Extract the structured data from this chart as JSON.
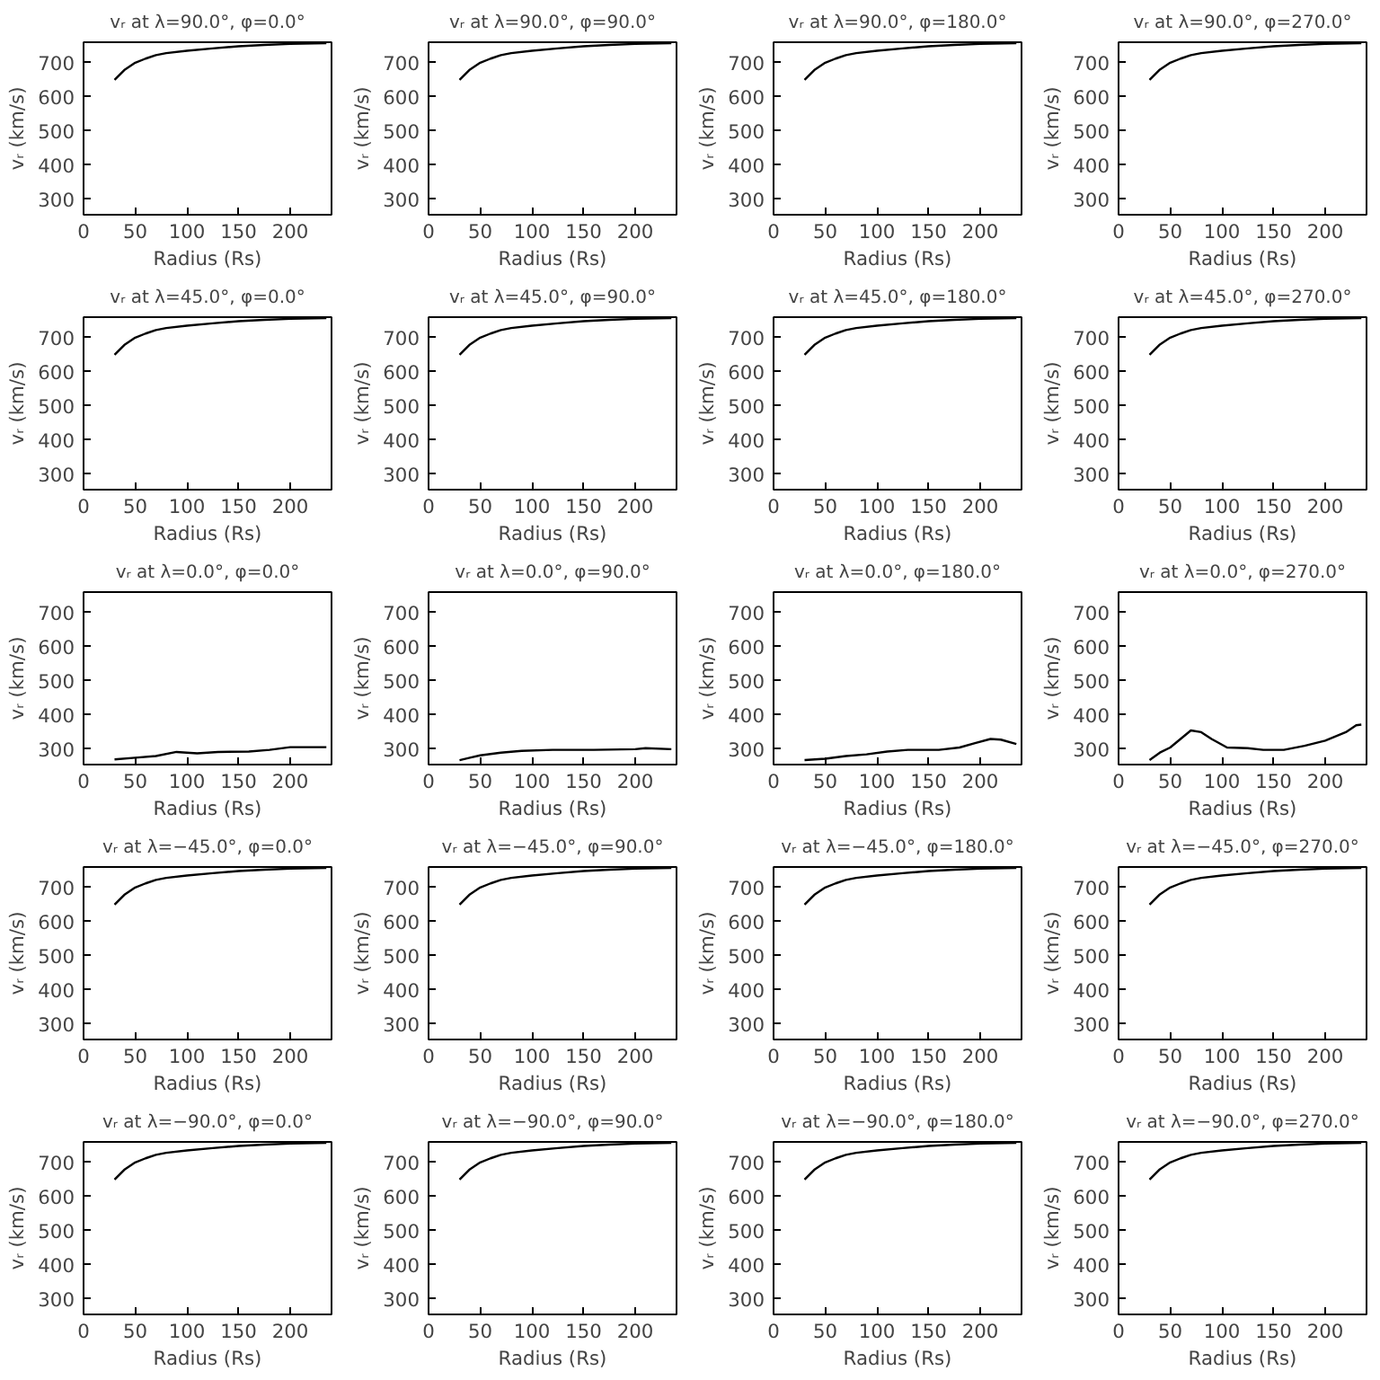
{
  "chart_data": [
    {
      "type": "line",
      "title": "vᵣ at λ=90.0°, φ=0.0°",
      "xlabel": "Radius (Rs)",
      "ylabel": "vᵣ (km/s)",
      "x": [
        30,
        40,
        50,
        60,
        70,
        80,
        100,
        125,
        150,
        175,
        200,
        235
      ],
      "values": [
        650,
        680,
        700,
        712,
        722,
        728,
        735,
        742,
        748,
        752,
        755,
        757
      ],
      "color": "#000000",
      "xlim": [
        0,
        240
      ],
      "ylim": [
        255,
        760
      ],
      "xticks": [
        0,
        50,
        100,
        150,
        200
      ],
      "yticks": [
        300,
        400,
        500,
        600,
        700
      ],
      "grid": false
    },
    {
      "type": "line",
      "title": "vᵣ at λ=90.0°, φ=90.0°",
      "xlabel": "Radius (Rs)",
      "ylabel": "vᵣ (km/s)",
      "x": [
        30,
        40,
        50,
        60,
        70,
        80,
        100,
        125,
        150,
        175,
        200,
        235
      ],
      "values": [
        650,
        680,
        700,
        712,
        722,
        728,
        735,
        742,
        748,
        752,
        755,
        757
      ],
      "color": "#000000",
      "xlim": [
        0,
        240
      ],
      "ylim": [
        255,
        760
      ],
      "xticks": [
        0,
        50,
        100,
        150,
        200
      ],
      "yticks": [
        300,
        400,
        500,
        600,
        700
      ],
      "grid": false
    },
    {
      "type": "line",
      "title": "vᵣ at λ=90.0°, φ=180.0°",
      "xlabel": "Radius (Rs)",
      "ylabel": "vᵣ (km/s)",
      "x": [
        30,
        40,
        50,
        60,
        70,
        80,
        100,
        125,
        150,
        175,
        200,
        235
      ],
      "values": [
        650,
        680,
        700,
        712,
        722,
        728,
        735,
        742,
        748,
        752,
        755,
        757
      ],
      "color": "#000000",
      "xlim": [
        0,
        240
      ],
      "ylim": [
        255,
        760
      ],
      "xticks": [
        0,
        50,
        100,
        150,
        200
      ],
      "yticks": [
        300,
        400,
        500,
        600,
        700
      ],
      "grid": false
    },
    {
      "type": "line",
      "title": "vᵣ at λ=90.0°, φ=270.0°",
      "xlabel": "Radius (Rs)",
      "ylabel": "vᵣ (km/s)",
      "x": [
        30,
        40,
        50,
        60,
        70,
        80,
        100,
        125,
        150,
        175,
        200,
        235
      ],
      "values": [
        650,
        680,
        700,
        712,
        722,
        728,
        735,
        742,
        748,
        752,
        755,
        757
      ],
      "color": "#000000",
      "xlim": [
        0,
        240
      ],
      "ylim": [
        255,
        760
      ],
      "xticks": [
        0,
        50,
        100,
        150,
        200
      ],
      "yticks": [
        300,
        400,
        500,
        600,
        700
      ],
      "grid": false
    },
    {
      "type": "line",
      "title": "vᵣ at λ=45.0°, φ=0.0°",
      "xlabel": "Radius (Rs)",
      "ylabel": "vᵣ (km/s)",
      "x": [
        30,
        40,
        50,
        60,
        70,
        80,
        100,
        125,
        150,
        175,
        200,
        235
      ],
      "values": [
        650,
        680,
        700,
        712,
        722,
        728,
        735,
        742,
        748,
        752,
        755,
        757
      ],
      "color": "#000000",
      "xlim": [
        0,
        240
      ],
      "ylim": [
        255,
        760
      ],
      "xticks": [
        0,
        50,
        100,
        150,
        200
      ],
      "yticks": [
        300,
        400,
        500,
        600,
        700
      ],
      "grid": false
    },
    {
      "type": "line",
      "title": "vᵣ at λ=45.0°, φ=90.0°",
      "xlabel": "Radius (Rs)",
      "ylabel": "vᵣ (km/s)",
      "x": [
        30,
        40,
        50,
        60,
        70,
        80,
        100,
        125,
        150,
        175,
        200,
        235
      ],
      "values": [
        650,
        680,
        700,
        712,
        722,
        728,
        735,
        742,
        748,
        752,
        755,
        757
      ],
      "color": "#000000",
      "xlim": [
        0,
        240
      ],
      "ylim": [
        255,
        760
      ],
      "xticks": [
        0,
        50,
        100,
        150,
        200
      ],
      "yticks": [
        300,
        400,
        500,
        600,
        700
      ],
      "grid": false
    },
    {
      "type": "line",
      "title": "vᵣ at λ=45.0°, φ=180.0°",
      "xlabel": "Radius (Rs)",
      "ylabel": "vᵣ (km/s)",
      "x": [
        30,
        40,
        50,
        60,
        70,
        80,
        100,
        125,
        150,
        175,
        200,
        235
      ],
      "values": [
        650,
        680,
        700,
        712,
        722,
        728,
        735,
        742,
        748,
        752,
        755,
        757
      ],
      "color": "#000000",
      "xlim": [
        0,
        240
      ],
      "ylim": [
        255,
        760
      ],
      "xticks": [
        0,
        50,
        100,
        150,
        200
      ],
      "yticks": [
        300,
        400,
        500,
        600,
        700
      ],
      "grid": false
    },
    {
      "type": "line",
      "title": "vᵣ at λ=45.0°, φ=270.0°",
      "xlabel": "Radius (Rs)",
      "ylabel": "vᵣ (km/s)",
      "x": [
        30,
        40,
        50,
        60,
        70,
        80,
        100,
        125,
        150,
        175,
        200,
        235
      ],
      "values": [
        650,
        680,
        700,
        712,
        722,
        728,
        735,
        742,
        748,
        752,
        755,
        757
      ],
      "color": "#000000",
      "xlim": [
        0,
        240
      ],
      "ylim": [
        255,
        760
      ],
      "xticks": [
        0,
        50,
        100,
        150,
        200
      ],
      "yticks": [
        300,
        400,
        500,
        600,
        700
      ],
      "grid": false
    },
    {
      "type": "line",
      "title": "vᵣ at λ=0.0°, φ=0.0°",
      "xlabel": "Radius (Rs)",
      "ylabel": "vᵣ (km/s)",
      "x": [
        30,
        50,
        70,
        90,
        110,
        130,
        160,
        180,
        200,
        235
      ],
      "values": [
        270,
        275,
        280,
        292,
        288,
        292,
        293,
        298,
        306,
        306
      ],
      "color": "#000000",
      "xlim": [
        0,
        240
      ],
      "ylim": [
        255,
        760
      ],
      "xticks": [
        0,
        50,
        100,
        150,
        200
      ],
      "yticks": [
        300,
        400,
        500,
        600,
        700
      ],
      "grid": false
    },
    {
      "type": "line",
      "title": "vᵣ at λ=0.0°, φ=90.0°",
      "xlabel": "Radius (Rs)",
      "ylabel": "vᵣ (km/s)",
      "x": [
        30,
        40,
        50,
        70,
        90,
        120,
        160,
        200,
        210,
        235
      ],
      "values": [
        268,
        275,
        282,
        290,
        295,
        298,
        298,
        300,
        303,
        300
      ],
      "color": "#000000",
      "xlim": [
        0,
        240
      ],
      "ylim": [
        255,
        760
      ],
      "xticks": [
        0,
        50,
        100,
        150,
        200
      ],
      "yticks": [
        300,
        400,
        500,
        600,
        700
      ],
      "grid": false
    },
    {
      "type": "line",
      "title": "vᵣ at λ=0.0°, φ=180.0°",
      "xlabel": "Radius (Rs)",
      "ylabel": "vᵣ (km/s)",
      "x": [
        30,
        50,
        70,
        90,
        110,
        130,
        160,
        180,
        195,
        210,
        220,
        235
      ],
      "values": [
        268,
        272,
        280,
        285,
        293,
        298,
        298,
        305,
        318,
        330,
        328,
        315
      ],
      "color": "#000000",
      "xlim": [
        0,
        240
      ],
      "ylim": [
        255,
        760
      ],
      "xticks": [
        0,
        50,
        100,
        150,
        200
      ],
      "yticks": [
        300,
        400,
        500,
        600,
        700
      ],
      "grid": false
    },
    {
      "type": "line",
      "title": "vᵣ at λ=0.0°, φ=270.0°",
      "xlabel": "Radius (Rs)",
      "ylabel": "vᵣ (km/s)",
      "x": [
        30,
        40,
        50,
        60,
        70,
        80,
        90,
        105,
        125,
        140,
        160,
        180,
        200,
        220,
        230,
        235
      ],
      "values": [
        268,
        290,
        305,
        330,
        355,
        350,
        330,
        305,
        303,
        298,
        298,
        310,
        325,
        350,
        370,
        372
      ],
      "color": "#000000",
      "xlim": [
        0,
        240
      ],
      "ylim": [
        255,
        760
      ],
      "xticks": [
        0,
        50,
        100,
        150,
        200
      ],
      "yticks": [
        300,
        400,
        500,
        600,
        700
      ],
      "grid": false
    },
    {
      "type": "line",
      "title": "vᵣ at λ=−45.0°, φ=0.0°",
      "xlabel": "Radius (Rs)",
      "ylabel": "vᵣ (km/s)",
      "x": [
        30,
        40,
        50,
        60,
        70,
        80,
        100,
        125,
        150,
        175,
        200,
        235
      ],
      "values": [
        650,
        680,
        700,
        712,
        722,
        728,
        735,
        742,
        748,
        752,
        755,
        757
      ],
      "color": "#000000",
      "xlim": [
        0,
        240
      ],
      "ylim": [
        255,
        760
      ],
      "xticks": [
        0,
        50,
        100,
        150,
        200
      ],
      "yticks": [
        300,
        400,
        500,
        600,
        700
      ],
      "grid": false
    },
    {
      "type": "line",
      "title": "vᵣ at λ=−45.0°, φ=90.0°",
      "xlabel": "Radius (Rs)",
      "ylabel": "vᵣ (km/s)",
      "x": [
        30,
        40,
        50,
        60,
        70,
        80,
        100,
        125,
        150,
        175,
        200,
        235
      ],
      "values": [
        650,
        680,
        700,
        712,
        722,
        728,
        735,
        742,
        748,
        752,
        755,
        757
      ],
      "color": "#000000",
      "xlim": [
        0,
        240
      ],
      "ylim": [
        255,
        760
      ],
      "xticks": [
        0,
        50,
        100,
        150,
        200
      ],
      "yticks": [
        300,
        400,
        500,
        600,
        700
      ],
      "grid": false
    },
    {
      "type": "line",
      "title": "vᵣ at λ=−45.0°, φ=180.0°",
      "xlabel": "Radius (Rs)",
      "ylabel": "vᵣ (km/s)",
      "x": [
        30,
        40,
        50,
        60,
        70,
        80,
        100,
        125,
        150,
        175,
        200,
        235
      ],
      "values": [
        650,
        680,
        700,
        712,
        722,
        728,
        735,
        742,
        748,
        752,
        755,
        757
      ],
      "color": "#000000",
      "xlim": [
        0,
        240
      ],
      "ylim": [
        255,
        760
      ],
      "xticks": [
        0,
        50,
        100,
        150,
        200
      ],
      "yticks": [
        300,
        400,
        500,
        600,
        700
      ],
      "grid": false
    },
    {
      "type": "line",
      "title": "vᵣ at λ=−45.0°, φ=270.0°",
      "xlabel": "Radius (Rs)",
      "ylabel": "vᵣ (km/s)",
      "x": [
        30,
        40,
        50,
        60,
        70,
        80,
        100,
        125,
        150,
        175,
        200,
        235
      ],
      "values": [
        650,
        680,
        700,
        712,
        722,
        728,
        735,
        742,
        748,
        752,
        755,
        757
      ],
      "color": "#000000",
      "xlim": [
        0,
        240
      ],
      "ylim": [
        255,
        760
      ],
      "xticks": [
        0,
        50,
        100,
        150,
        200
      ],
      "yticks": [
        300,
        400,
        500,
        600,
        700
      ],
      "grid": false
    },
    {
      "type": "line",
      "title": "vᵣ at λ=−90.0°, φ=0.0°",
      "xlabel": "Radius (Rs)",
      "ylabel": "vᵣ (km/s)",
      "x": [
        30,
        40,
        50,
        60,
        70,
        80,
        100,
        125,
        150,
        175,
        200,
        235
      ],
      "values": [
        650,
        680,
        700,
        712,
        722,
        728,
        735,
        742,
        748,
        752,
        755,
        757
      ],
      "color": "#000000",
      "xlim": [
        0,
        240
      ],
      "ylim": [
        255,
        760
      ],
      "xticks": [
        0,
        50,
        100,
        150,
        200
      ],
      "yticks": [
        300,
        400,
        500,
        600,
        700
      ],
      "grid": false
    },
    {
      "type": "line",
      "title": "vᵣ at λ=−90.0°, φ=90.0°",
      "xlabel": "Radius (Rs)",
      "ylabel": "vᵣ (km/s)",
      "x": [
        30,
        40,
        50,
        60,
        70,
        80,
        100,
        125,
        150,
        175,
        200,
        235
      ],
      "values": [
        650,
        680,
        700,
        712,
        722,
        728,
        735,
        742,
        748,
        752,
        755,
        757
      ],
      "color": "#000000",
      "xlim": [
        0,
        240
      ],
      "ylim": [
        255,
        760
      ],
      "xticks": [
        0,
        50,
        100,
        150,
        200
      ],
      "yticks": [
        300,
        400,
        500,
        600,
        700
      ],
      "grid": false
    },
    {
      "type": "line",
      "title": "vᵣ at λ=−90.0°, φ=180.0°",
      "xlabel": "Radius (Rs)",
      "ylabel": "vᵣ (km/s)",
      "x": [
        30,
        40,
        50,
        60,
        70,
        80,
        100,
        125,
        150,
        175,
        200,
        235
      ],
      "values": [
        650,
        680,
        700,
        712,
        722,
        728,
        735,
        742,
        748,
        752,
        755,
        757
      ],
      "color": "#000000",
      "xlim": [
        0,
        240
      ],
      "ylim": [
        255,
        760
      ],
      "xticks": [
        0,
        50,
        100,
        150,
        200
      ],
      "yticks": [
        300,
        400,
        500,
        600,
        700
      ],
      "grid": false
    },
    {
      "type": "line",
      "title": "vᵣ at λ=−90.0°, φ=270.0°",
      "xlabel": "Radius (Rs)",
      "ylabel": "vᵣ (km/s)",
      "x": [
        30,
        40,
        50,
        60,
        70,
        80,
        100,
        125,
        150,
        175,
        200,
        235
      ],
      "values": [
        650,
        680,
        700,
        712,
        722,
        728,
        735,
        742,
        748,
        752,
        755,
        757
      ],
      "color": "#000000",
      "xlim": [
        0,
        240
      ],
      "ylim": [
        255,
        760
      ],
      "xticks": [
        0,
        50,
        100,
        150,
        200
      ],
      "yticks": [
        300,
        400,
        500,
        600,
        700
      ],
      "grid": false
    }
  ]
}
